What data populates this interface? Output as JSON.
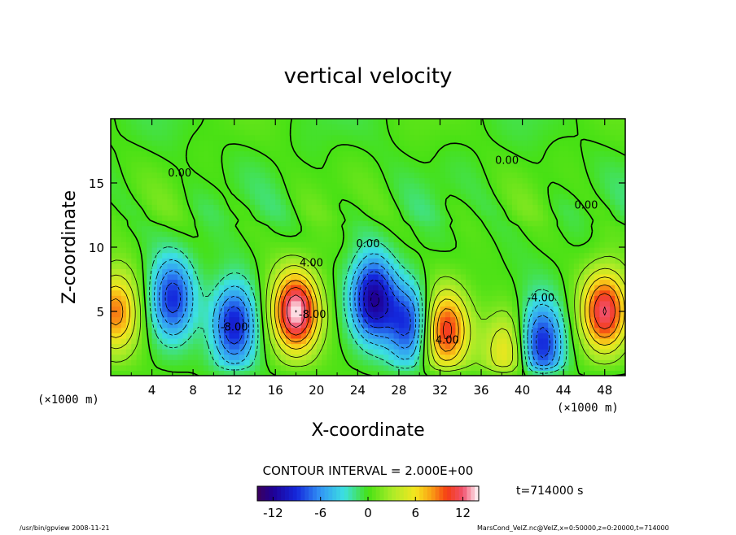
{
  "chart_data": {
    "type": "heatmap",
    "title": "vertical velocity",
    "xlabel": "X-coordinate",
    "ylabel": "Z-coordinate",
    "x_unit_label": "(×1000 m)",
    "y_unit_label": "(×1000 m)",
    "xlim": [
      0,
      50
    ],
    "ylim": [
      0,
      20
    ],
    "x_ticks": [
      4,
      8,
      12,
      16,
      20,
      24,
      28,
      32,
      36,
      40,
      44,
      48
    ],
    "y_ticks": [
      5,
      10,
      15
    ],
    "contour_interval_text": "CONTOUR INTERVAL = 2.000E+00",
    "contour_labels": [
      {
        "text": "0.00",
        "x": 6.7,
        "y": 15.5
      },
      {
        "text": "4.00",
        "x": 19.5,
        "y": 8.5
      },
      {
        "text": "0.00",
        "x": 25.0,
        "y": 10.0
      },
      {
        "text": "4.00",
        "x": 32.7,
        "y": 2.5
      },
      {
        "text": "-4.00",
        "x": 41.8,
        "y": 5.8
      },
      {
        "text": "0.00",
        "x": 38.5,
        "y": 16.5
      },
      {
        "text": "0.00",
        "x": 46.2,
        "y": 13.0
      },
      {
        "text": "-8.00",
        "x": 12.0,
        "y": 3.5
      },
      {
        "text": "-8.00",
        "x": 19.6,
        "y": 4.5
      }
    ],
    "features": [
      {
        "kind": "updraft",
        "x": 18.0,
        "z": 5.0,
        "peak": 14
      },
      {
        "kind": "downdraft",
        "x": 6.0,
        "z": 6.0,
        "peak": -9
      },
      {
        "kind": "downdraft",
        "x": 12.0,
        "z": 4.0,
        "peak": -10
      },
      {
        "kind": "downdraft",
        "x": 25.5,
        "z": 6.0,
        "peak": -12
      },
      {
        "kind": "downdraft",
        "x": 29.0,
        "z": 4.0,
        "peak": -9
      },
      {
        "kind": "updraft",
        "x": 32.5,
        "z": 3.5,
        "peak": 11
      },
      {
        "kind": "updraft",
        "x": 38.5,
        "z": 2.0,
        "peak": 6
      },
      {
        "kind": "downdraft",
        "x": 41.8,
        "z": 2.5,
        "peak": -10
      },
      {
        "kind": "updraft",
        "x": 48.0,
        "z": 5.0,
        "peak": 12
      },
      {
        "kind": "updraft",
        "x": 0.5,
        "z": 5.0,
        "peak": 9
      }
    ],
    "colorbar": {
      "min": -14,
      "max": 14,
      "interval": 2,
      "ticks": [
        -12,
        -6,
        0,
        6,
        12
      ]
    },
    "time_label": "t=714000  s",
    "footer_left": "/usr/bin/gpview   2008-11-21",
    "footer_right": "MarsCond_VelZ.nc@VelZ,x=0:50000,z=0:20000,t=714000"
  }
}
